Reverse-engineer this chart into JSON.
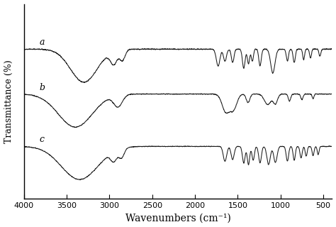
{
  "xlabel": "Wavenumbers (cm⁻¹)",
  "ylabel": "Transmittance (%)",
  "xlim": [
    4000,
    400
  ],
  "labels": [
    "a",
    "b",
    "c"
  ],
  "offsets": [
    1.8,
    0.6,
    -0.8
  ],
  "bg_color": "#ffffff",
  "line_color": "#1a1a1a",
  "xticks": [
    4000,
    3500,
    3000,
    2500,
    2000,
    1500,
    1000,
    500
  ],
  "seed": 42
}
